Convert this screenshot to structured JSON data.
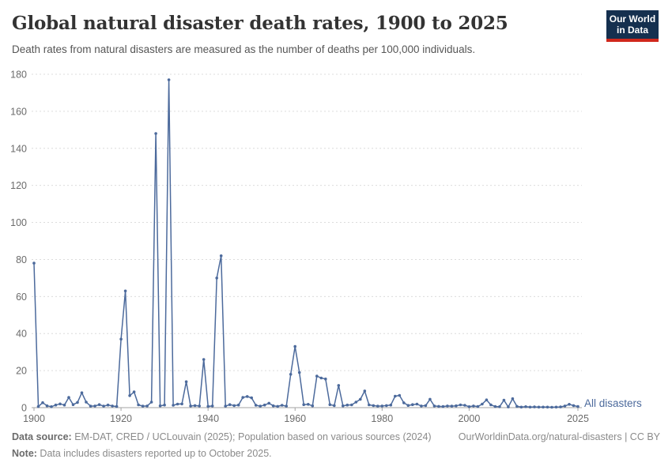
{
  "header": {
    "title": "Global natural disaster death rates, 1900 to 2025",
    "subtitle": "Death rates from natural disasters are measured as the number of deaths per 100,000 individuals.",
    "logo_line1": "Our World",
    "logo_line2": "in Data"
  },
  "chart_data": {
    "type": "line",
    "title": "Global natural disaster death rates, 1900 to 2025",
    "xlabel": "",
    "ylabel": "deaths per 100,000",
    "xlim": [
      1900,
      2025
    ],
    "ylim": [
      0,
      180
    ],
    "x_ticks": [
      1900,
      1920,
      1940,
      1960,
      1980,
      2000,
      2025
    ],
    "y_ticks": [
      0,
      20,
      40,
      60,
      80,
      100,
      120,
      140,
      160,
      180
    ],
    "grid": "horizontal-dashed",
    "legend_position": "right-of-line-end",
    "series": [
      {
        "name": "All disasters",
        "color": "#4c6a9c",
        "x": [
          1900,
          1901,
          1902,
          1903,
          1904,
          1905,
          1906,
          1907,
          1908,
          1909,
          1910,
          1911,
          1912,
          1913,
          1914,
          1915,
          1916,
          1917,
          1918,
          1919,
          1920,
          1921,
          1922,
          1923,
          1924,
          1925,
          1926,
          1927,
          1928,
          1929,
          1930,
          1931,
          1932,
          1933,
          1934,
          1935,
          1936,
          1937,
          1938,
          1939,
          1940,
          1941,
          1942,
          1943,
          1944,
          1945,
          1946,
          1947,
          1948,
          1949,
          1950,
          1951,
          1952,
          1953,
          1954,
          1955,
          1956,
          1957,
          1958,
          1959,
          1960,
          1961,
          1962,
          1963,
          1964,
          1965,
          1966,
          1967,
          1968,
          1969,
          1970,
          1971,
          1972,
          1973,
          1974,
          1975,
          1976,
          1977,
          1978,
          1979,
          1980,
          1981,
          1982,
          1983,
          1984,
          1985,
          1986,
          1987,
          1988,
          1989,
          1990,
          1991,
          1992,
          1993,
          1994,
          1995,
          1996,
          1997,
          1998,
          1999,
          2000,
          2001,
          2002,
          2003,
          2004,
          2005,
          2006,
          2007,
          2008,
          2009,
          2010,
          2011,
          2012,
          2013,
          2014,
          2015,
          2016,
          2017,
          2018,
          2019,
          2020,
          2021,
          2022,
          2023,
          2024,
          2025
        ],
        "values": [
          78,
          0.6,
          2.7,
          1.0,
          0.5,
          1.4,
          2.0,
          1.4,
          5.5,
          1.6,
          2.8,
          8.0,
          3.0,
          0.8,
          0.9,
          1.6,
          0.8,
          1.4,
          0.9,
          0.6,
          37,
          63,
          6.5,
          8.5,
          1.5,
          0.8,
          0.9,
          3.0,
          148,
          1.0,
          1.4,
          177,
          1.3,
          1.9,
          2.0,
          14,
          0.9,
          1.1,
          0.9,
          26,
          0.7,
          0.9,
          70,
          82,
          0.8,
          1.6,
          1.1,
          1.4,
          5.5,
          6.0,
          5.3,
          1.3,
          0.8,
          1.4,
          2.4,
          1.0,
          0.7,
          1.3,
          0.8,
          18,
          33,
          19,
          1.6,
          1.8,
          1.0,
          17,
          16,
          15.5,
          1.6,
          1.1,
          12,
          1.0,
          1.4,
          1.5,
          3.0,
          4.5,
          9.0,
          1.5,
          1.1,
          0.8,
          0.9,
          1.1,
          1.4,
          6.2,
          6.6,
          2.6,
          1.2,
          1.6,
          1.9,
          0.9,
          1.1,
          4.5,
          0.9,
          0.7,
          0.6,
          0.9,
          0.8,
          1.0,
          1.5,
          1.3,
          0.5,
          0.9,
          0.6,
          1.9,
          4.2,
          1.5,
          0.6,
          0.5,
          4.0,
          0.4,
          4.8,
          0.7,
          0.3,
          0.5,
          0.3,
          0.4,
          0.3,
          0.3,
          0.3,
          0.2,
          0.3,
          0.4,
          0.9,
          1.8,
          1.1,
          0.6
        ]
      }
    ]
  },
  "legend": {
    "label": "All disasters"
  },
  "footer": {
    "source_label": "Data source:",
    "source_text": " EM-DAT, CRED / UCLouvain (2025); Population based on various sources (2024)",
    "link": "OurWorldinData.org/natural-disasters | CC BY",
    "note_label": "Note:",
    "note_text": " Data includes disasters reported up to October 2025."
  },
  "colors": {
    "line": "#4c6a9c",
    "grid": "#dcdcdc",
    "axis": "#a3a3a3",
    "tick_label": "#6b6b6b",
    "legend_text": "#4c6a9c",
    "logo_bg": "#15304f",
    "logo_bar": "#d0281c"
  }
}
